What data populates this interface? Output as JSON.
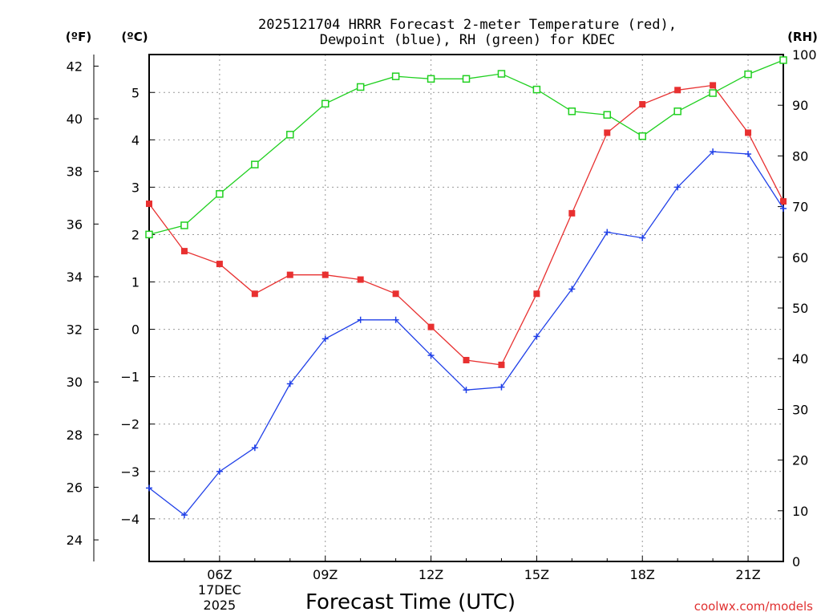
{
  "chart_data": {
    "type": "line",
    "title_line1": "2025121704 HRRR Forecast 2-meter Temperature (red),",
    "title_line2": "Dewpoint (blue), RH (green) for KDEC",
    "xlabel": "Forecast Time (UTC)",
    "credit": "coolwx.com/models",
    "units": {
      "fahrenheit": "(ºF)",
      "celsius": "(ºC)",
      "rh": "(RH)"
    },
    "x_hours": [
      4,
      5,
      6,
      7,
      8,
      9,
      10,
      11,
      12,
      13,
      14,
      15,
      16,
      17,
      18,
      19,
      20,
      21,
      22
    ],
    "x_range": [
      4,
      22
    ],
    "x_ticks": [
      {
        "hour": 6,
        "label": "06Z",
        "sub1": "17DEC",
        "sub2": "2025"
      },
      {
        "hour": 9,
        "label": "09Z"
      },
      {
        "hour": 12,
        "label": "12Z"
      },
      {
        "hour": 15,
        "label": "15Z"
      },
      {
        "hour": 18,
        "label": "18Z"
      },
      {
        "hour": 21,
        "label": "21Z"
      }
    ],
    "celsius_range": [
      -4.9,
      5.8
    ],
    "celsius_ticks": [
      5,
      4,
      3,
      2,
      1,
      0,
      -1,
      -2,
      -3,
      -4
    ],
    "fahrenheit_ticks": [
      42,
      40,
      38,
      36,
      34,
      32,
      30,
      28,
      26,
      24
    ],
    "rh_range": [
      0,
      100
    ],
    "rh_ticks": [
      100,
      90,
      80,
      70,
      60,
      50,
      40,
      30,
      20,
      10,
      0
    ],
    "series": [
      {
        "name": "Temperature",
        "axis": "celsius",
        "color": "#e83030",
        "marker": "filled-square",
        "values": [
          2.65,
          1.65,
          1.38,
          0.75,
          1.15,
          1.15,
          1.05,
          0.75,
          0.05,
          -0.65,
          -0.75,
          0.75,
          2.45,
          4.15,
          4.75,
          5.05,
          5.15,
          4.15,
          2.7
        ]
      },
      {
        "name": "Dewpoint",
        "axis": "celsius",
        "color": "#2040e8",
        "marker": "plus",
        "values": [
          -3.35,
          -3.92,
          -3.0,
          -2.5,
          -1.15,
          -0.2,
          0.2,
          0.2,
          -0.55,
          -1.28,
          -1.22,
          -0.15,
          0.85,
          2.05,
          1.93,
          3.0,
          3.75,
          3.7,
          2.55
        ]
      },
      {
        "name": "RH",
        "axis": "rh",
        "color": "#20d020",
        "marker": "open-square",
        "values": [
          64.5,
          66.3,
          72.5,
          78.3,
          84.2,
          90.3,
          93.6,
          95.7,
          95.2,
          95.2,
          96.2,
          93.1,
          88.8,
          88.1,
          83.9,
          88.8,
          92.4,
          96.1,
          98.9
        ]
      }
    ]
  }
}
